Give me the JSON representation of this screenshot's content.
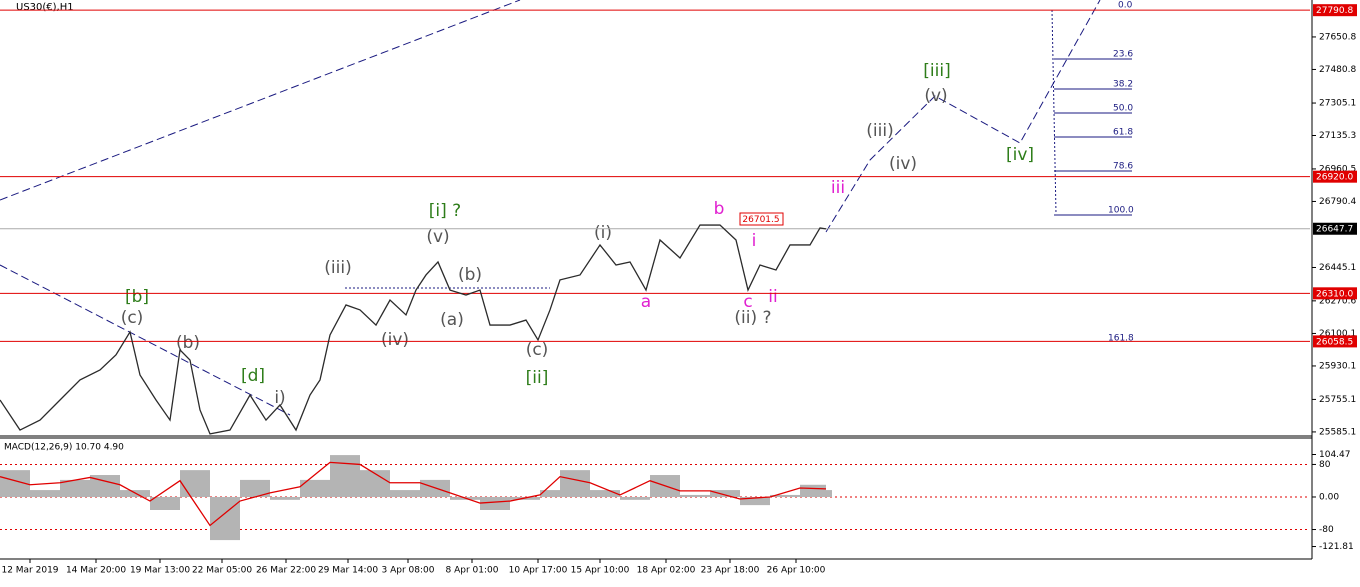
{
  "chart_data": {
    "type": "line",
    "title": "US30(€),H1",
    "xlim": [
      0,
      655
    ],
    "ylim": [
      25569,
      27844
    ],
    "yticks": [
      27650.8,
      27480.8,
      27305.1,
      27135.3,
      26960.5,
      26790.4,
      26445.1,
      26270.6,
      26100.1,
      25930.1,
      25755.1,
      25585.1
    ],
    "xticks": [
      {
        "value": 15,
        "label": "12 Mar 2019"
      },
      {
        "value": 48,
        "label": "14 Mar 20:00"
      },
      {
        "value": 80,
        "label": "19 Mar 13:00"
      },
      {
        "value": 111,
        "label": "22 Mar 05:00"
      },
      {
        "value": 143,
        "label": "26 Mar 22:00"
      },
      {
        "value": 174,
        "label": "29 Mar 14:00"
      },
      {
        "value": 204,
        "label": "3 Apr 08:00"
      },
      {
        "value": 236,
        "label": "8 Apr 01:00"
      },
      {
        "value": 269,
        "label": "10 Apr 17:00"
      },
      {
        "value": 300,
        "label": "15 Apr 10:00"
      },
      {
        "value": 333,
        "label": "18 Apr 02:00"
      },
      {
        "value": 365,
        "label": "23 Apr 18:00"
      },
      {
        "value": 398,
        "label": "26 Apr 10:00"
      }
    ],
    "series": [
      {
        "name": "US30",
        "color": "#2b2b2b",
        "x": [
          0,
          10,
          20,
          30,
          40,
          50,
          58,
          65,
          70,
          78,
          85,
          90,
          95,
          100,
          105,
          115,
          125,
          133,
          140,
          148,
          155,
          160,
          165,
          173,
          180,
          188,
          195,
          203,
          208,
          213,
          219,
          225,
          233,
          240,
          245,
          255,
          263,
          269,
          275,
          280,
          290,
          300,
          308,
          315,
          323,
          330,
          340,
          350,
          360,
          368,
          374,
          380,
          388,
          395,
          405,
          410,
          413
        ],
        "values": [
          25752,
          25595,
          25647,
          25752,
          25857,
          25909,
          25988,
          26108,
          25883,
          25752,
          25647,
          26014,
          25961,
          25700,
          25575,
          25595,
          25778,
          25647,
          25726,
          25595,
          25778,
          25857,
          26092,
          26249,
          26223,
          26144,
          26275,
          26197,
          26327,
          26406,
          26474,
          26327,
          26301,
          26327,
          26144,
          26144,
          26170,
          26066,
          26223,
          26380,
          26406,
          26563,
          26458,
          26474,
          26327,
          26589,
          26495,
          26667,
          26667,
          26589,
          26327,
          26458,
          26432,
          26563,
          26563,
          26652,
          26647
        ]
      }
    ],
    "levels": [
      {
        "value": 27790.8,
        "label": "27790.8",
        "color": "#e00000"
      },
      {
        "value": 26920.0,
        "label": "26920.0",
        "color": "#e00000"
      },
      {
        "value": 26310.0,
        "label": "26310.0",
        "color": "#e00000"
      },
      {
        "value": 26058.5,
        "label": "26058.5",
        "color": "#e00000"
      },
      {
        "value": 26647.7,
        "label": "26647.7",
        "color": "#000000"
      }
    ],
    "wave_labels": [
      "[b]",
      "(c)",
      "(b)",
      "[d]",
      "i)",
      "(iii)",
      "(iv)",
      "[i] ?",
      "(v)",
      "(b)",
      "(a)",
      "(c)",
      "[ii]",
      "(i)",
      "a",
      "b",
      "i",
      "c",
      "ii",
      "(ii) ?",
      "iii",
      "(iii)",
      "(iv)",
      "[iii]",
      "(v)",
      "[iv]",
      "26701.5"
    ],
    "fibonacci": [
      "0.0",
      "23.6",
      "38.2",
      "50.0",
      "61.8",
      "78.6",
      "100.0",
      "161.8"
    ],
    "macd": {
      "title": "MACD(12,26,9) 10.70 4.90",
      "ylim": [
        -150,
        145
      ],
      "yticks": [
        {
          "value": 104.47,
          "label": "104.47"
        },
        80,
        {
          "value": 0,
          "label": "0.00"
        },
        -80,
        {
          "value": -121.81,
          "label": "-121.81"
        }
      ],
      "x": [
        0,
        15,
        30,
        45,
        60,
        75,
        90,
        105,
        120,
        135,
        150,
        165,
        180,
        195,
        210,
        225,
        240,
        255,
        270,
        280,
        295,
        310,
        325,
        340,
        355,
        370,
        385,
        400,
        413
      ],
      "series": [
        {
          "name": "MACD",
          "color": "#b4b4b4",
          "values": [
            66,
            17,
            42,
            54,
            17,
            -32,
            66,
            -106,
            42,
            -7,
            42,
            103,
            66,
            17,
            42,
            -7,
            -32,
            -7,
            17,
            66,
            17,
            -7,
            54,
            5,
            17,
            -20,
            5,
            30,
            17
          ]
        },
        {
          "name": "Signal",
          "color": "#e00000",
          "values": [
            50,
            30,
            35,
            48,
            30,
            -10,
            40,
            -70,
            -10,
            10,
            25,
            85,
            80,
            35,
            35,
            10,
            -15,
            -10,
            5,
            50,
            35,
            5,
            40,
            15,
            15,
            -5,
            0,
            22,
            20
          ]
        }
      ]
    }
  }
}
